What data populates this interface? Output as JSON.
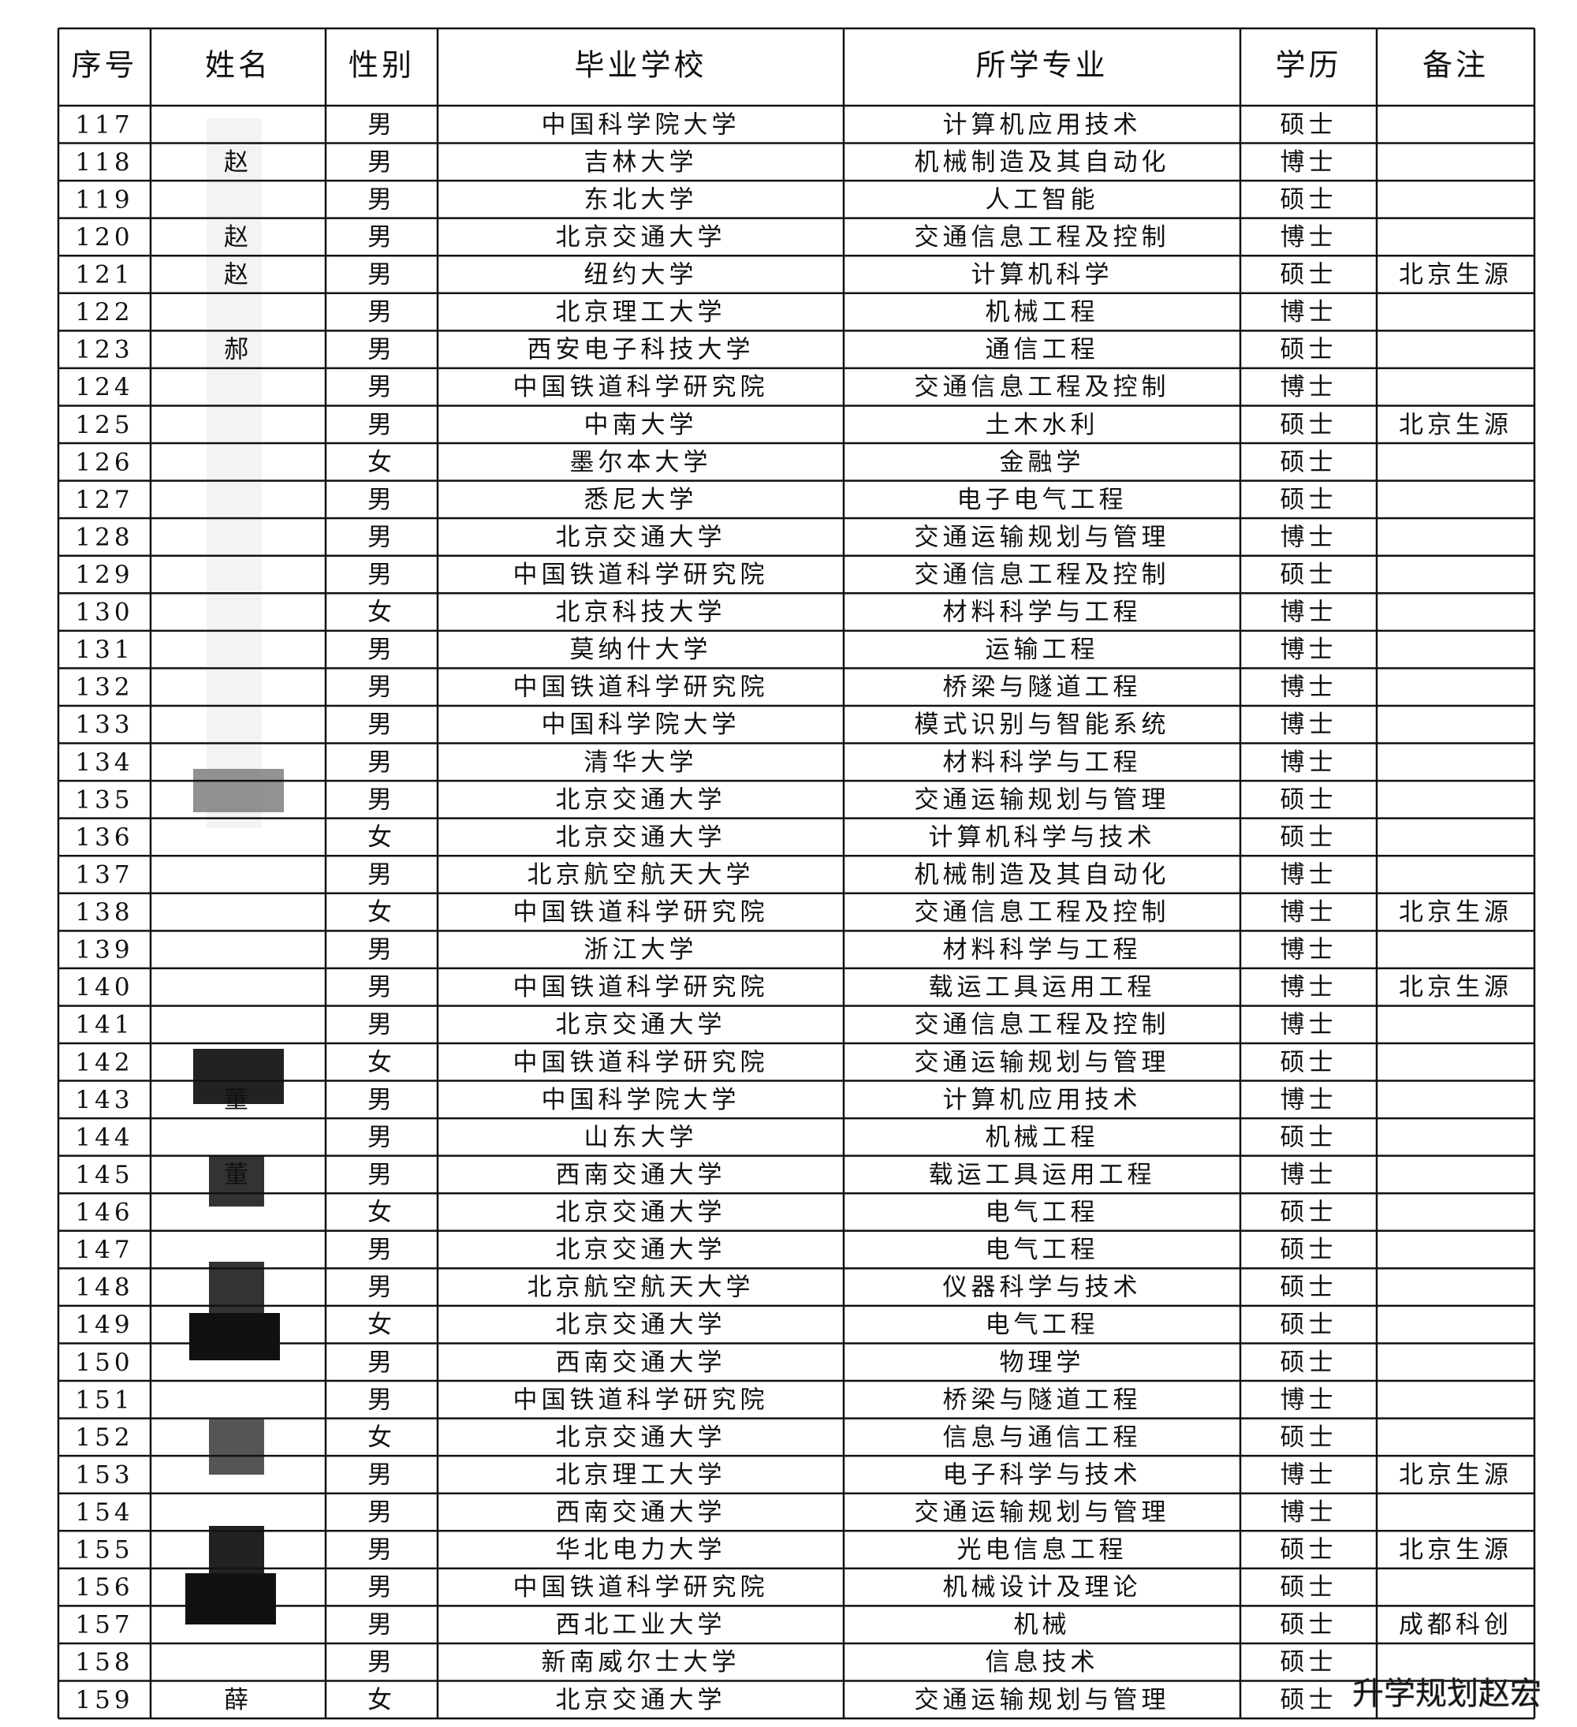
{
  "header": {
    "columns": [
      "序号",
      "姓名",
      "性别",
      "毕业学校",
      "所学专业",
      "学历",
      "备注"
    ]
  },
  "table": {
    "rows": [
      [
        117,
        null,
        "男",
        "中国科学院大学",
        "计算机应用技术",
        "硕士",
        null
      ],
      [
        118,
        "赵",
        "男",
        "吉林大学",
        "机械制造及其自动化",
        "博士",
        null
      ],
      [
        119,
        null,
        "男",
        "东北大学",
        "人工智能",
        "硕士",
        null
      ],
      [
        120,
        "赵",
        "男",
        "北京交通大学",
        "交通信息工程及控制",
        "博士",
        null
      ],
      [
        121,
        "赵",
        "男",
        "纽约大学",
        "计算机科学",
        "硕士",
        "北京生源"
      ],
      [
        122,
        null,
        "男",
        "北京理工大学",
        "机械工程",
        "博士",
        null
      ],
      [
        123,
        "郝",
        "男",
        "西安电子科技大学",
        "通信工程",
        "硕士",
        null
      ],
      [
        124,
        null,
        "男",
        "中国铁道科学研究院",
        "交通信息工程及控制",
        "博士",
        null
      ],
      [
        125,
        null,
        "男",
        "中南大学",
        "土木水利",
        "硕士",
        "北京生源"
      ],
      [
        126,
        null,
        "女",
        "墨尔本大学",
        "金融学",
        "硕士",
        null
      ],
      [
        127,
        null,
        "男",
        "悉尼大学",
        "电子电气工程",
        "硕士",
        null
      ],
      [
        128,
        null,
        "男",
        "北京交通大学",
        "交通运输规划与管理",
        "博士",
        null
      ],
      [
        129,
        null,
        "男",
        "中国铁道科学研究院",
        "交通信息工程及控制",
        "硕士",
        null
      ],
      [
        130,
        null,
        "女",
        "北京科技大学",
        "材料科学与工程",
        "博士",
        null
      ],
      [
        131,
        null,
        "男",
        "莫纳什大学",
        "运输工程",
        "博士",
        null
      ],
      [
        132,
        null,
        "男",
        "中国铁道科学研究院",
        "桥梁与隧道工程",
        "博士",
        null
      ],
      [
        133,
        null,
        "男",
        "中国科学院大学",
        "模式识别与智能系统",
        "博士",
        null
      ],
      [
        134,
        null,
        "男",
        "清华大学",
        "材料科学与工程",
        "博士",
        null
      ],
      [
        135,
        null,
        "男",
        "北京交通大学",
        "交通运输规划与管理",
        "硕士",
        null
      ],
      [
        136,
        null,
        "女",
        "北京交通大学",
        "计算机科学与技术",
        "硕士",
        null
      ],
      [
        137,
        null,
        "男",
        "北京航空航天大学",
        "机械制造及其自动化",
        "博士",
        null
      ],
      [
        138,
        null,
        "女",
        "中国铁道科学研究院",
        "交通信息工程及控制",
        "博士",
        "北京生源"
      ],
      [
        139,
        null,
        "男",
        "浙江大学",
        "材料科学与工程",
        "博士",
        null
      ],
      [
        140,
        null,
        "男",
        "中国铁道科学研究院",
        "载运工具运用工程",
        "博士",
        "北京生源"
      ],
      [
        141,
        null,
        "男",
        "北京交通大学",
        "交通信息工程及控制",
        "博士",
        null
      ],
      [
        142,
        null,
        "女",
        "中国铁道科学研究院",
        "交通运输规划与管理",
        "硕士",
        null
      ],
      [
        143,
        "董",
        "男",
        "中国科学院大学",
        "计算机应用技术",
        "博士",
        null
      ],
      [
        144,
        null,
        "男",
        "山东大学",
        "机械工程",
        "硕士",
        null
      ],
      [
        145,
        "董",
        "男",
        "西南交通大学",
        "载运工具运用工程",
        "博士",
        null
      ],
      [
        146,
        null,
        "女",
        "北京交通大学",
        "电气工程",
        "硕士",
        null
      ],
      [
        147,
        null,
        "男",
        "北京交通大学",
        "电气工程",
        "硕士",
        null
      ],
      [
        148,
        null,
        "男",
        "北京航空航天大学",
        "仪器科学与技术",
        "硕士",
        null
      ],
      [
        149,
        null,
        "女",
        "北京交通大学",
        "电气工程",
        "硕士",
        null
      ],
      [
        150,
        null,
        "男",
        "西南交通大学",
        "物理学",
        "硕士",
        null
      ],
      [
        151,
        null,
        "男",
        "中国铁道科学研究院",
        "桥梁与隧道工程",
        "博士",
        null
      ],
      [
        152,
        null,
        "女",
        "北京交通大学",
        "信息与通信工程",
        "硕士",
        null
      ],
      [
        153,
        null,
        "男",
        "北京理工大学",
        "电子科学与技术",
        "博士",
        "北京生源"
      ],
      [
        154,
        null,
        "男",
        "西南交通大学",
        "交通运输规划与管理",
        "博士",
        null
      ],
      [
        155,
        null,
        "男",
        "华北电力大学",
        "光电信息工程",
        "硕士",
        "北京生源"
      ],
      [
        156,
        null,
        "男",
        "中国铁道科学研究院",
        "机械设计及理论",
        "硕士",
        null
      ],
      [
        157,
        null,
        "男",
        "西北工业大学",
        "机械",
        "硕士",
        "成都科创"
      ],
      [
        158,
        null,
        "男",
        "新南威尔士大学",
        "信息技术",
        "硕士",
        null
      ],
      [
        159,
        "薛",
        "女",
        "北京交通大学",
        "交通运输规划与管理",
        "硕士",
        null
      ]
    ]
  },
  "watermark": "升学规划赵宏"
}
